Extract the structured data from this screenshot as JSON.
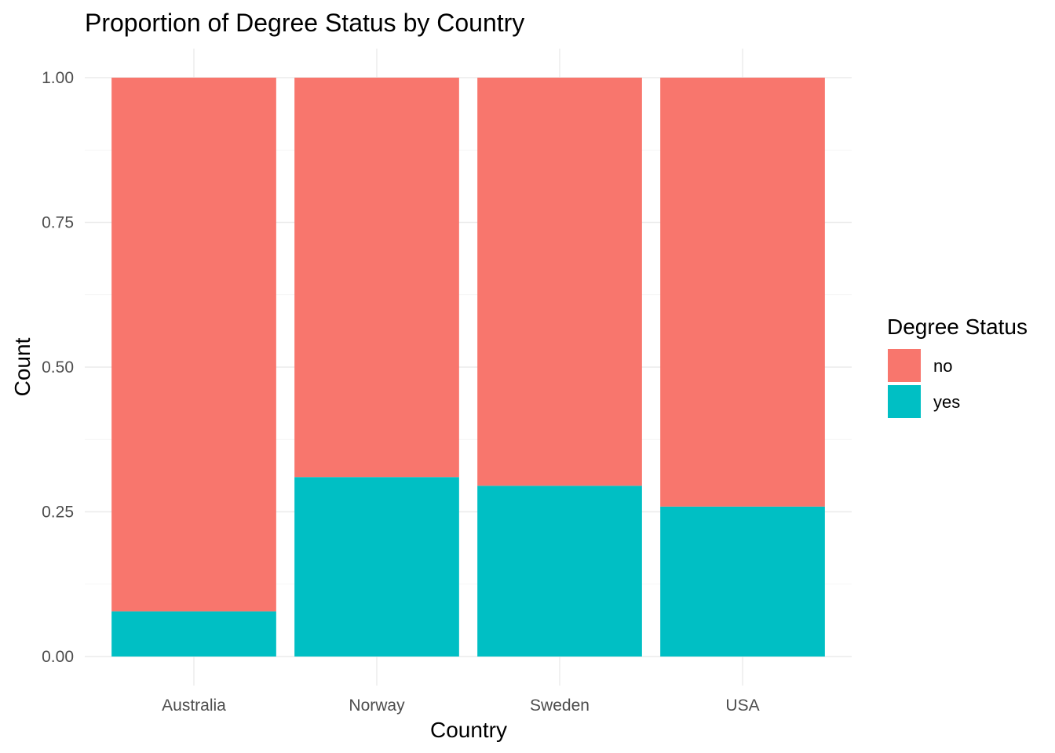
{
  "chart_data": {
    "type": "bar",
    "stacked": true,
    "position": "fill",
    "title": "Proportion of Degree Status by Country",
    "xlabel": "Country",
    "ylabel": "Count",
    "categories": [
      "Australia",
      "Norway",
      "Sweden",
      "USA"
    ],
    "series": [
      {
        "name": "no",
        "color": "#F8766D",
        "values": [
          0.922,
          0.69,
          0.705,
          0.741
        ]
      },
      {
        "name": "yes",
        "color": "#00BFC4",
        "values": [
          0.078,
          0.31,
          0.295,
          0.259
        ]
      }
    ],
    "ylim": [
      0,
      1
    ],
    "yticks": [
      0,
      0.25,
      0.5,
      0.75,
      1
    ],
    "ytick_labels": [
      "0.00",
      "0.25",
      "0.50",
      "0.75",
      "1.00"
    ],
    "legend": {
      "title": "Degree Status",
      "position": "right"
    },
    "grid": true
  }
}
